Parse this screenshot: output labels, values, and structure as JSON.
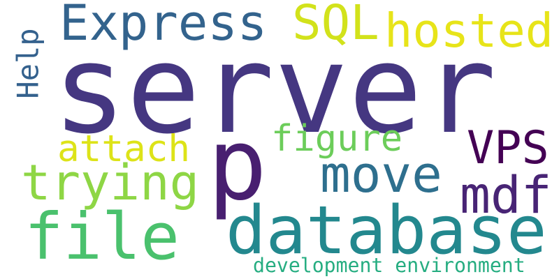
{
  "words": [
    {
      "id": "server",
      "text": "server",
      "color": "#453781"
    },
    {
      "id": "database",
      "text": "database",
      "color": "#23888e"
    },
    {
      "id": "file",
      "text": "file",
      "color": "#4ac16d"
    },
    {
      "id": "p",
      "text": "p",
      "color": "#481f70"
    },
    {
      "id": "express",
      "text": "Express",
      "color": "#33638d"
    },
    {
      "id": "sql",
      "text": "SQL",
      "color": "#d2e21b"
    },
    {
      "id": "hosted",
      "text": "hosted",
      "color": "#e7e419"
    },
    {
      "id": "help",
      "text": "Help",
      "color": "#34618d"
    },
    {
      "id": "trying",
      "text": "trying",
      "color": "#8ed645"
    },
    {
      "id": "attach",
      "text": "attach",
      "color": "#dde318"
    },
    {
      "id": "figure",
      "text": "figure",
      "color": "#6ccd5a"
    },
    {
      "id": "move",
      "text": "move",
      "color": "#2e6f8e"
    },
    {
      "id": "vps",
      "text": "VPS",
      "color": "#440154"
    },
    {
      "id": "mdf",
      "text": "mdf",
      "color": "#482475"
    },
    {
      "id": "devenv",
      "text": "development environment",
      "color": "#26ad81"
    }
  ]
}
